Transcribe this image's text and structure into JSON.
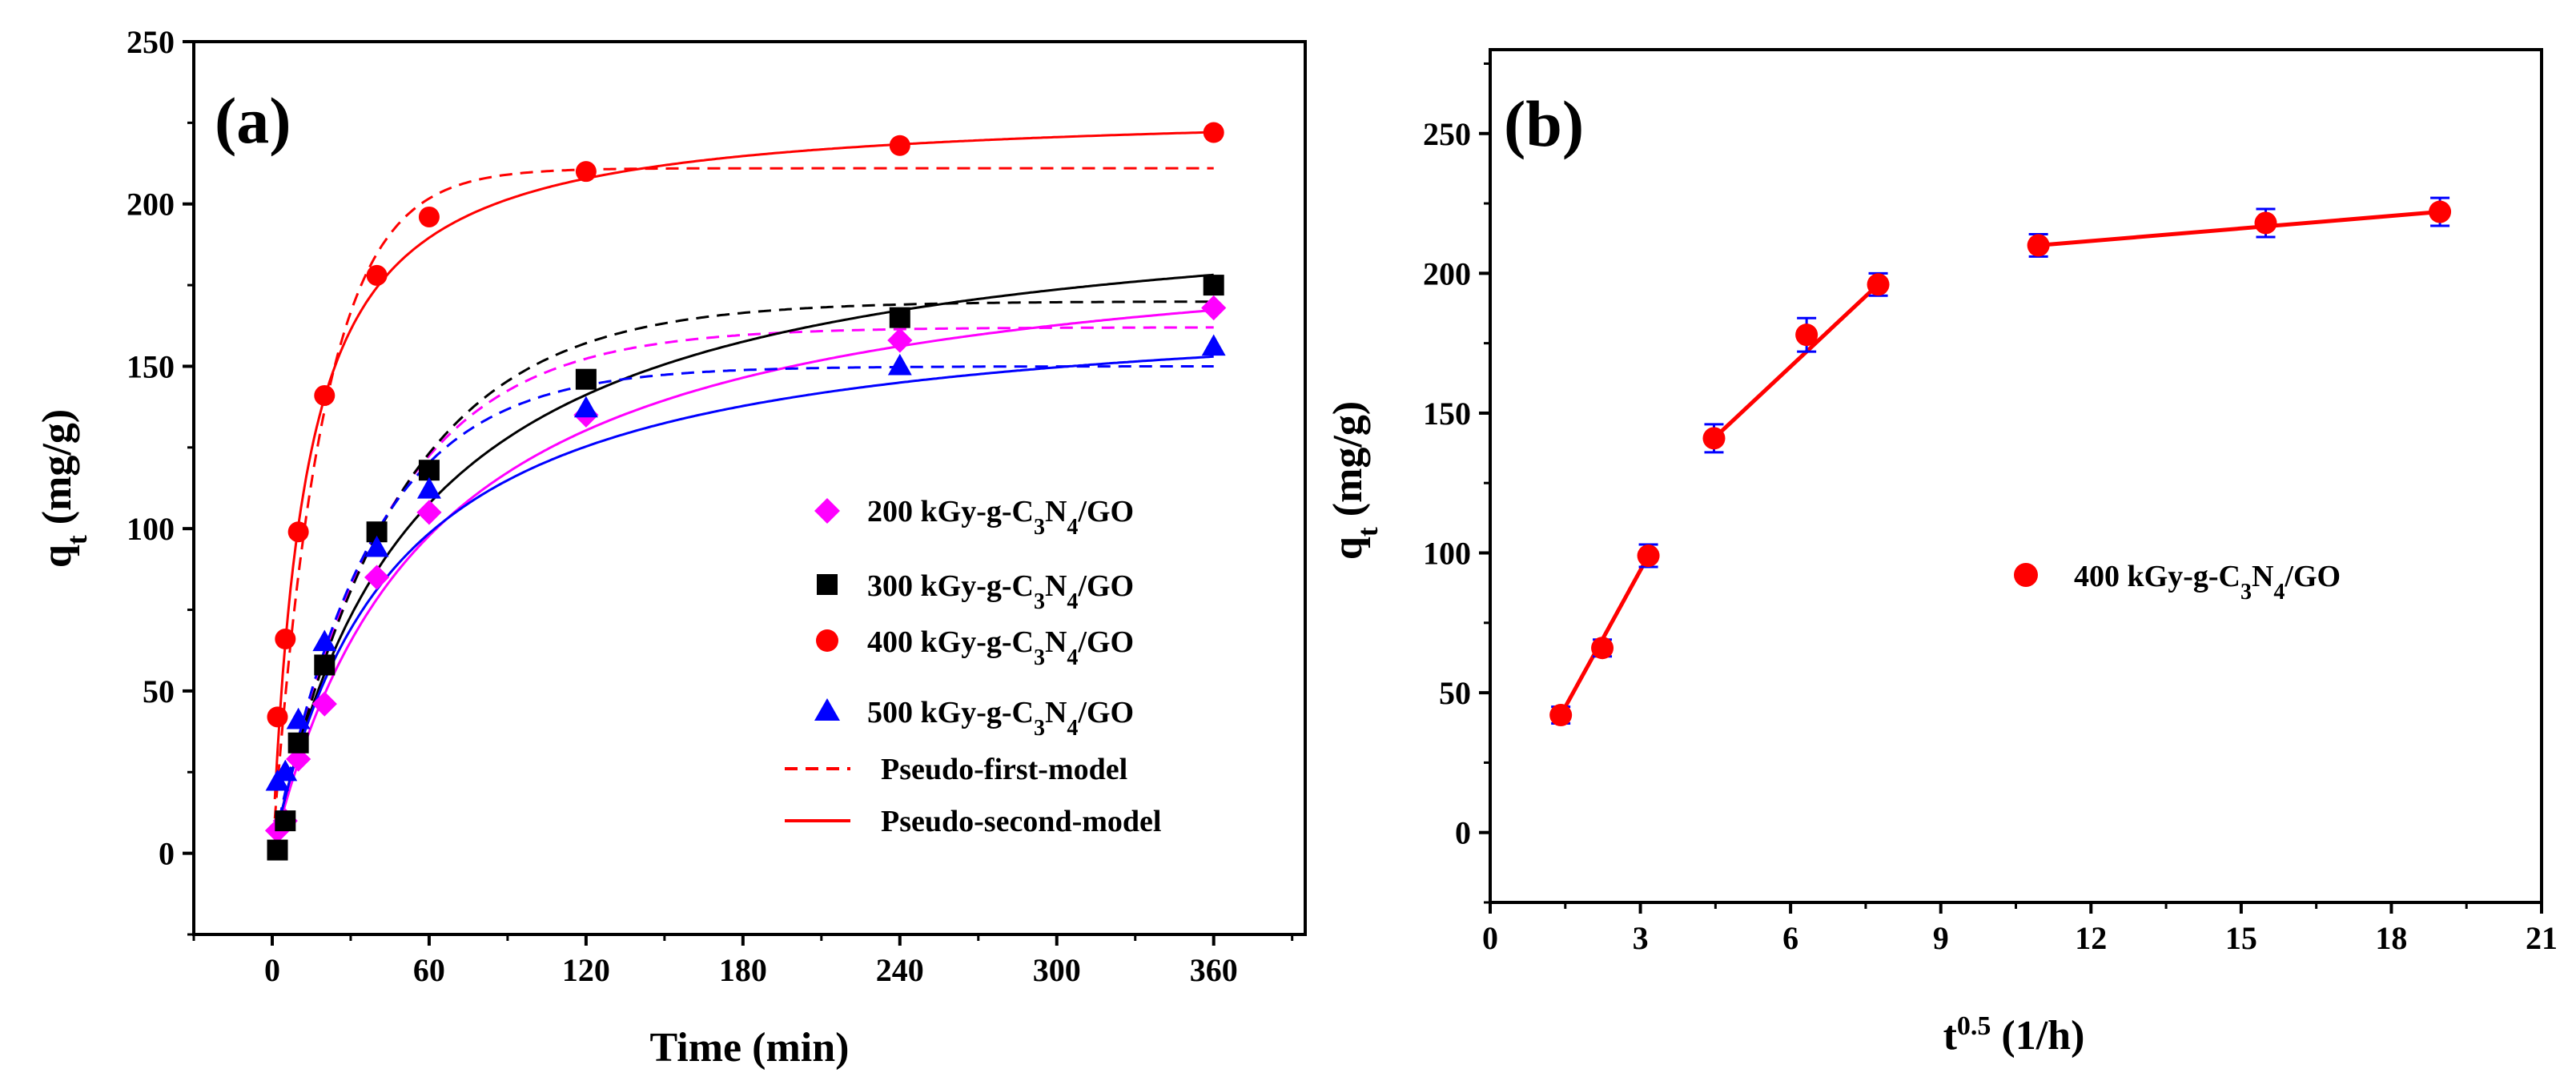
{
  "colors": {
    "magenta": "#ff00ff",
    "black": "#000000",
    "red": "#ff0000",
    "blue": "#0000ff"
  },
  "chart_data": [
    {
      "type": "scatter",
      "panel_label": "(a)",
      "xlabel": "Time (min)",
      "ylabel": {
        "main": "q",
        "sub": "t",
        "unit": " (mg/g)"
      },
      "xlim": [
        -30,
        395
      ],
      "ylim": [
        -25,
        250
      ],
      "xticks": [
        0,
        60,
        120,
        180,
        240,
        300,
        360
      ],
      "yticks": [
        0,
        50,
        100,
        150,
        200,
        250
      ],
      "series": [
        {
          "name": "200 kGy-g-C3N4/GO",
          "legend": {
            "pre": "200 kGy-g-C",
            "s1": "3",
            "mid": "N",
            "s2": "4",
            "post": "/GO"
          },
          "color": "#ff00ff",
          "marker": "diamond",
          "x": [
            2,
            5,
            10,
            20,
            40,
            60,
            120,
            240,
            360
          ],
          "y": [
            7,
            10,
            29,
            46,
            85,
            105,
            135,
            158,
            168
          ],
          "fit_first": {
            "qe": 162,
            "k": 0.0235
          },
          "fit_second": {
            "qe": 195,
            "k": 8.6e-05
          }
        },
        {
          "name": "300 kGy-g-C3N4/GO",
          "legend": {
            "pre": "300 kGy-g-C",
            "s1": "3",
            "mid": "N",
            "s2": "4",
            "post": "/GO"
          },
          "color": "#000000",
          "marker": "square",
          "x": [
            2,
            5,
            10,
            20,
            40,
            60,
            120,
            240,
            360
          ],
          "y": [
            1,
            10,
            34,
            58,
            99,
            118,
            146,
            165,
            175
          ],
          "fit_first": {
            "qe": 170,
            "k": 0.0215
          },
          "fit_second": {
            "qe": 205,
            "k": 9e-05
          }
        },
        {
          "name": "400 kGy-g-C3N4/GO",
          "legend": {
            "pre": "400 kGy-g-C",
            "s1": "3",
            "mid": "N",
            "s2": "4",
            "post": "/GO"
          },
          "color": "#ff0000",
          "marker": "circle",
          "x": [
            2,
            5,
            10,
            20,
            40,
            60,
            120,
            240,
            360
          ],
          "y": [
            42,
            66,
            99,
            141,
            178,
            196,
            210,
            218,
            222
          ],
          "fit_first": {
            "qe": 211,
            "k": 0.052
          },
          "fit_second": {
            "qe": 230,
            "k": 0.00034
          }
        },
        {
          "name": "500 kGy-g-C3N4/GO",
          "legend": {
            "pre": "500 kGy-g-C",
            "s1": "3",
            "mid": "N",
            "s2": "4",
            "post": "/GO"
          },
          "color": "#0000ff",
          "marker": "triangle",
          "x": [
            2,
            5,
            10,
            20,
            40,
            60,
            120,
            240,
            360
          ],
          "y": [
            22,
            25,
            41,
            65,
            94,
            112,
            137,
            150,
            156
          ],
          "fit_first": {
            "qe": 150,
            "k": 0.027
          },
          "fit_second": {
            "qe": 172,
            "k": 0.00013
          }
        }
      ],
      "legend_lines": [
        {
          "label": "Pseudo-first-model",
          "style": "dashed",
          "color": "#ff0000"
        },
        {
          "label": "Pseudo-second-model",
          "style": "solid",
          "color": "#ff0000"
        }
      ]
    },
    {
      "type": "scatter",
      "panel_label": "(b)",
      "xlabel": {
        "main": "t",
        "sup": "0.5",
        "unit": " (1/h)"
      },
      "ylabel": {
        "main": "q",
        "sub": "t",
        "unit": " (mg/g)"
      },
      "xlim": [
        0,
        21
      ],
      "ylim": [
        -25,
        280
      ],
      "xticks": [
        0,
        3,
        6,
        9,
        12,
        15,
        18,
        21
      ],
      "yticks": [
        0,
        50,
        100,
        150,
        200,
        250
      ],
      "series": [
        {
          "name": "400 kGy-g-C3N4/GO",
          "legend": {
            "pre": "400 kGy-g-C",
            "s1": "3",
            "mid": "N",
            "s2": "4",
            "post": "/GO"
          },
          "color": "#ff0000",
          "errorbar_color": "#0000ff",
          "marker": "circle",
          "x": [
            1.41,
            2.24,
            3.16,
            4.47,
            6.32,
            7.75,
            10.95,
            15.49,
            18.97
          ],
          "y": [
            42,
            66,
            99,
            141,
            178,
            196,
            210,
            218,
            222
          ],
          "err": [
            3,
            3,
            4,
            5,
            6,
            4,
            4,
            5,
            5
          ]
        }
      ],
      "fit_segments": [
        {
          "x": [
            1.41,
            3.16
          ],
          "y": [
            42,
            99
          ]
        },
        {
          "x": [
            4.47,
            7.75
          ],
          "y": [
            141,
            196
          ]
        },
        {
          "x": [
            10.95,
            18.97
          ],
          "y": [
            210,
            222
          ]
        }
      ]
    }
  ]
}
